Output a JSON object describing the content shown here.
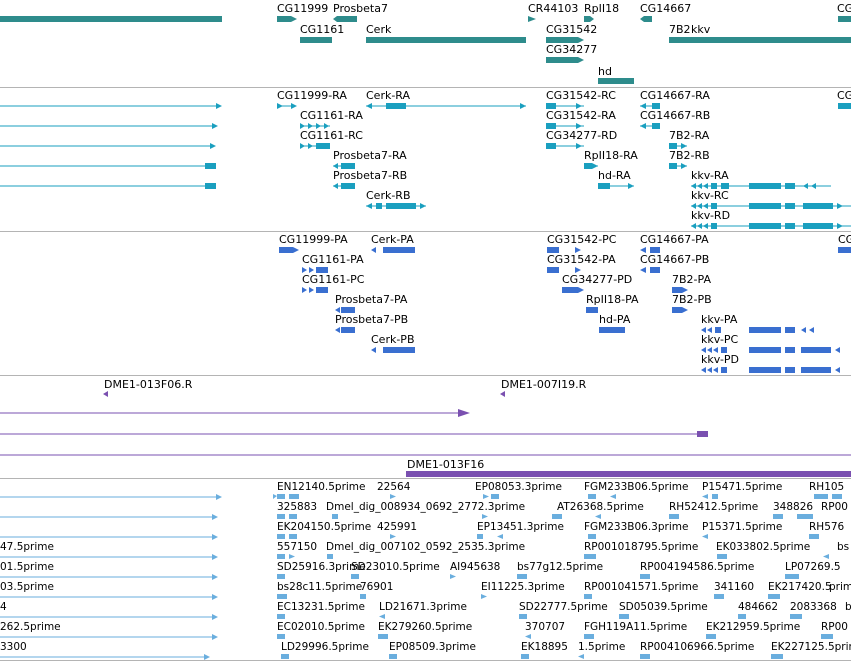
{
  "colors": {
    "gene": "#2e8c8c",
    "transcript": "#1a9fbf",
    "protein": "#3a6fd0",
    "clone": "#7a50b0",
    "est": "#6aaede",
    "separator": "#b4b4b4"
  },
  "gene_track": {
    "labels": [
      "CG11999",
      "Prosbeta7",
      "CR44103",
      "RpII18",
      "CG14667",
      "CG",
      "CG1161",
      "Cerk",
      "CG31542",
      "7B2",
      "kkv",
      "CG34277",
      "hd"
    ]
  },
  "transcript_track": {
    "labels": [
      "CG11999-RA",
      "Cerk-RA",
      "CG31542-RC",
      "CG14667-RA",
      "CG",
      "CG1161-RA",
      "CG31542-RA",
      "CG14667-RB",
      "CG1161-RC",
      "CG34277-RD",
      "7B2-RA",
      "Prosbeta7-RA",
      "RpII18-RA",
      "7B2-RB",
      "Prosbeta7-RB",
      "hd-RA",
      "kkv-RA",
      "Cerk-RB",
      "kkv-RC",
      "kkv-RD"
    ]
  },
  "protein_track": {
    "labels": [
      "CG11999-PA",
      "Cerk-PA",
      "CG31542-PC",
      "CG14667-PA",
      "CG",
      "CG1161-PA",
      "CG31542-PA",
      "CG14667-PB",
      "CG1161-PC",
      "CG34277-PD",
      "7B2-PA",
      "Prosbeta7-PA",
      "RpII18-PA",
      "7B2-PB",
      "Prosbeta7-PB",
      "hd-PA",
      "kkv-PA",
      "Cerk-PB",
      "kkv-PC",
      "kkv-PD"
    ]
  },
  "clone_track": {
    "labels": [
      "DME1-013F06.R",
      "DME1-007I19.R",
      "DME1-013F16"
    ]
  },
  "est_track": {
    "labels": [
      "EN12140.5prime",
      "22564",
      "EP08053.3prime",
      "FGM233B06.5prime",
      "P15471.5prime",
      "RH105",
      "325883",
      "Dmel_dig_008934_0692_2772.3prime",
      "AT26368.5prime",
      "RH52412.5prime",
      "348826",
      "RP00",
      "EK204150.5prime",
      "425991",
      "EP13451.3prime",
      "FGM233B06.3prime",
      "P15371.5prime",
      "RH576",
      "47.5prime",
      "557150",
      "Dmel_dig_007102_0592_2535.3prime",
      "RP001018795.5prime",
      "EK033802.5prime",
      "bs",
      "01.5prime",
      "SD25916.3prime",
      "SD23010.5prime",
      "AI945638",
      "bs77g12.5prime",
      "RP004194586.5prime",
      "LP07269.5",
      "03.5prime",
      "bs28c11.5prime",
      "76901",
      "EI11225.3prime",
      "RP001041571.5prime",
      "341160",
      "EK217420.5",
      "prime",
      "4",
      "EC13231.5prime",
      "LD21671.3prime",
      "SD22777.5prime",
      "SD05039.5prime",
      "484662",
      "2083368",
      "b",
      "262.5prime",
      "EC02010.5prime",
      "EK279260.5prime",
      "370707",
      "FGH119A11.5prime",
      "EK212959.5prime",
      "RP00",
      "3300",
      "LD29996.5prime",
      "EP08509.3prime",
      "EK18895",
      "1.5prime",
      "RP004106966.5prime",
      "EK227125.5prime"
    ]
  }
}
